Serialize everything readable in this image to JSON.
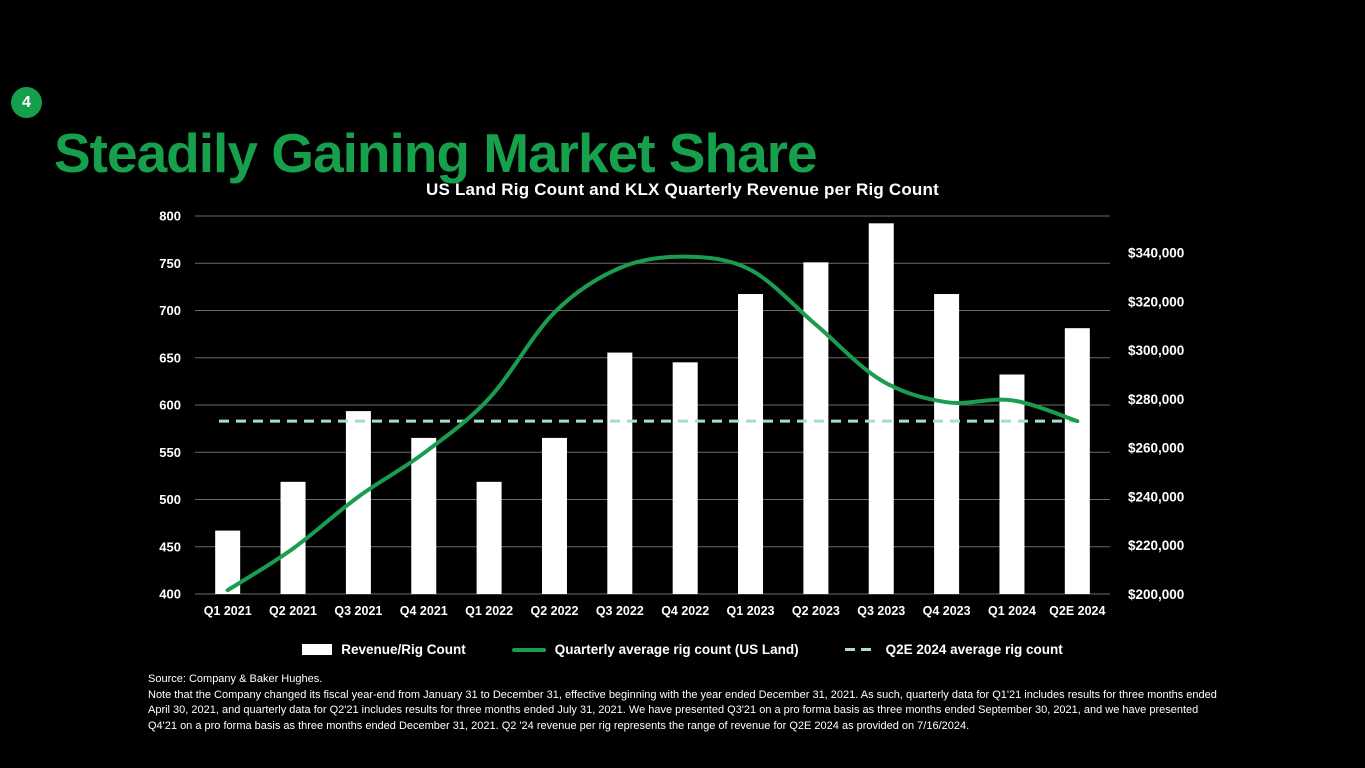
{
  "slide": {
    "badge": "4",
    "title": "Steadily Gaining Market Share",
    "accent_green": "#17a04c",
    "background": "#000000"
  },
  "chart_data": {
    "type": "bar",
    "title": "US Land Rig Count and KLX Quarterly Revenue per Rig Count",
    "categories": [
      "Q1 2021",
      "Q2 2021",
      "Q3 2021",
      "Q4 2021",
      "Q1 2022",
      "Q2 2022",
      "Q3 2022",
      "Q4 2022",
      "Q1 2023",
      "Q2 2023",
      "Q3 2023",
      "Q4 2023",
      "Q1 2024",
      "Q2E 2024"
    ],
    "series": [
      {
        "name": "Revenue/Rig Count",
        "type": "bar",
        "axis": "right",
        "color": "#ffffff",
        "values": [
          226000,
          246000,
          275000,
          264000,
          246000,
          264000,
          299000,
          295000,
          323000,
          336000,
          352000,
          323000,
          290000,
          309000
        ]
      },
      {
        "name": "Quarterly average rig count (US Land)",
        "type": "line",
        "axis": "left",
        "color": "#1a9d4f",
        "values": [
          404,
          448,
          503,
          549,
          607,
          698,
          745,
          757,
          743,
          685,
          626,
          603,
          605,
          583
        ]
      },
      {
        "name": "Q2E 2024 average rig count",
        "type": "dashed-line",
        "axis": "left",
        "color": "#a6e0c0",
        "value": 583
      }
    ],
    "left_axis": {
      "min": 400,
      "max": 800,
      "ticks": [
        800,
        750,
        700,
        650,
        600,
        550,
        500,
        450,
        400
      ]
    },
    "right_axis": {
      "min": 200000,
      "plot_max": 355000,
      "ticks": [
        340000,
        320000,
        300000,
        280000,
        260000,
        240000,
        220000,
        200000
      ],
      "prefix": "$"
    },
    "grid": true,
    "grid_color": "#6a6a6a",
    "legend_position": "bottom"
  },
  "footer": {
    "source": "Source: Company & Baker Hughes.",
    "note": "Note that the Company changed its fiscal year-end from January 31 to December 31, effective beginning with the year ended December 31, 2021. As such, quarterly data for Q1'21 includes results for three months ended April 30, 2021, and quarterly data for Q2'21 includes results for three months ended July 31, 2021. We have presented Q3'21 on a pro forma basis as three months ended September 30, 2021, and we have presented Q4'21 on a pro forma basis as three months ended December 31, 2021. Q2 '24 revenue per rig represents the range of revenue for Q2E 2024 as provided on 7/16/2024."
  }
}
